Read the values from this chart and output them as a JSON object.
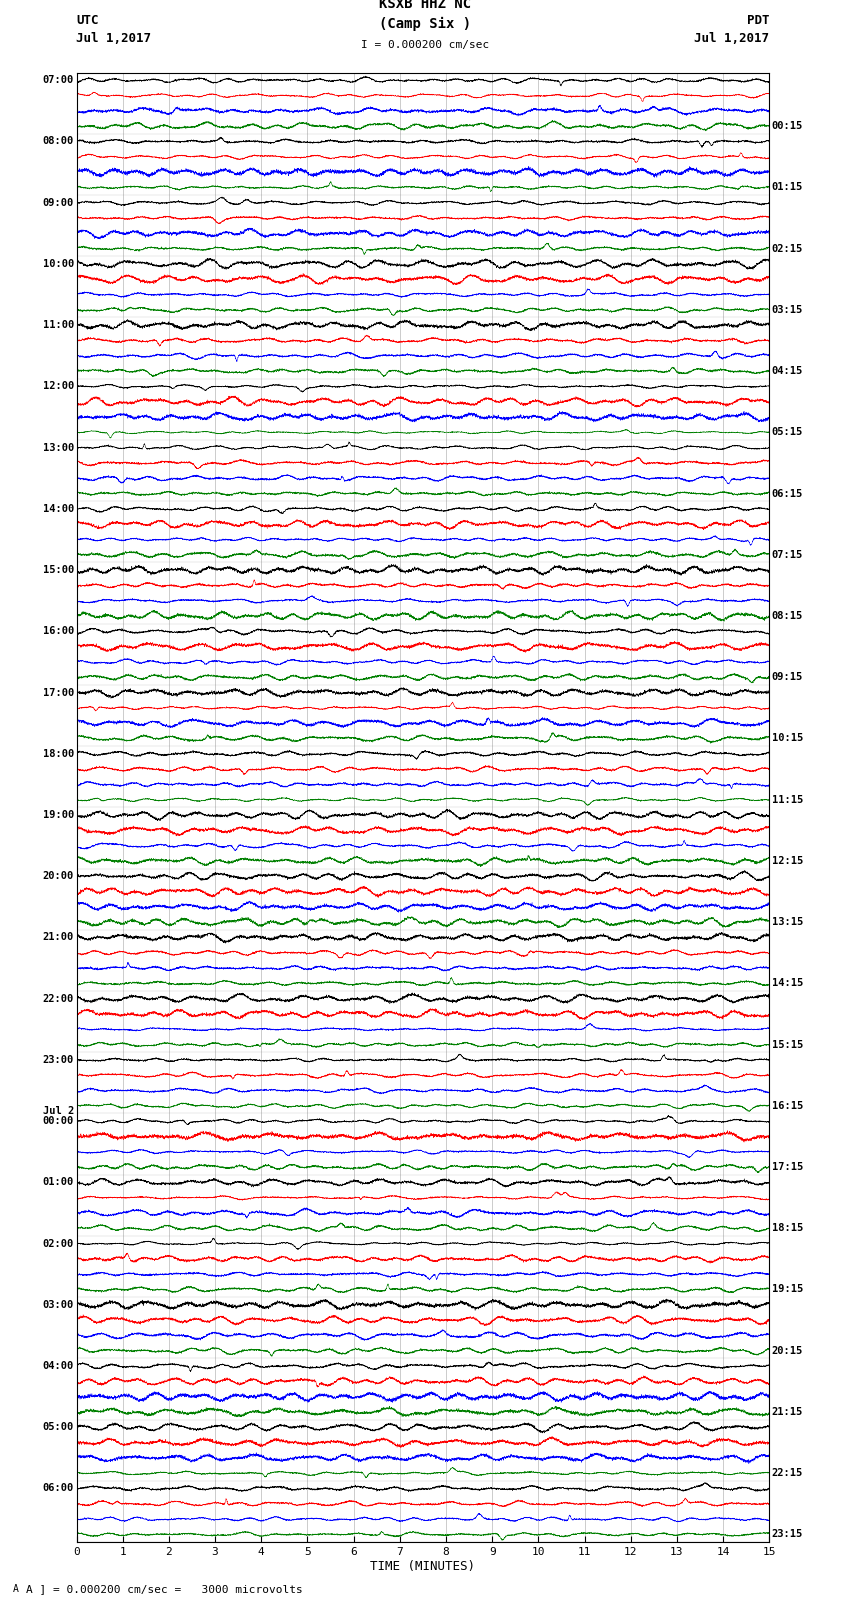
{
  "title_line1": "KSXB HHZ NC",
  "title_line2": "(Camp Six )",
  "scale_label": "I = 0.000200 cm/sec",
  "utc_label": "UTC",
  "pdt_label": "PDT",
  "date_left": "Jul 1,2017",
  "date_right": "Jul 1,2017",
  "xlabel": "TIME (MINUTES)",
  "footer": "A ] = 0.000200 cm/sec =   3000 microvolts",
  "xlim": [
    0,
    15
  ],
  "xticks": [
    0,
    1,
    2,
    3,
    4,
    5,
    6,
    7,
    8,
    9,
    10,
    11,
    12,
    13,
    14,
    15
  ],
  "background_color": "#ffffff",
  "trace_colors": [
    "black",
    "red",
    "blue",
    "green"
  ],
  "left_labels": [
    "07:00",
    "08:00",
    "09:00",
    "10:00",
    "11:00",
    "12:00",
    "13:00",
    "14:00",
    "15:00",
    "16:00",
    "17:00",
    "18:00",
    "19:00",
    "20:00",
    "21:00",
    "22:00",
    "23:00",
    "Jul 2\n00:00",
    "01:00",
    "02:00",
    "03:00",
    "04:00",
    "05:00",
    "06:00"
  ],
  "right_labels": [
    "00:15",
    "01:15",
    "02:15",
    "03:15",
    "04:15",
    "05:15",
    "06:15",
    "07:15",
    "08:15",
    "09:15",
    "10:15",
    "11:15",
    "12:15",
    "13:15",
    "14:15",
    "15:15",
    "16:15",
    "17:15",
    "18:15",
    "19:15",
    "20:15",
    "21:15",
    "22:15",
    "23:15"
  ],
  "num_hours": 24,
  "traces_per_hour": 4,
  "figsize": [
    8.5,
    16.13
  ],
  "dpi": 100
}
